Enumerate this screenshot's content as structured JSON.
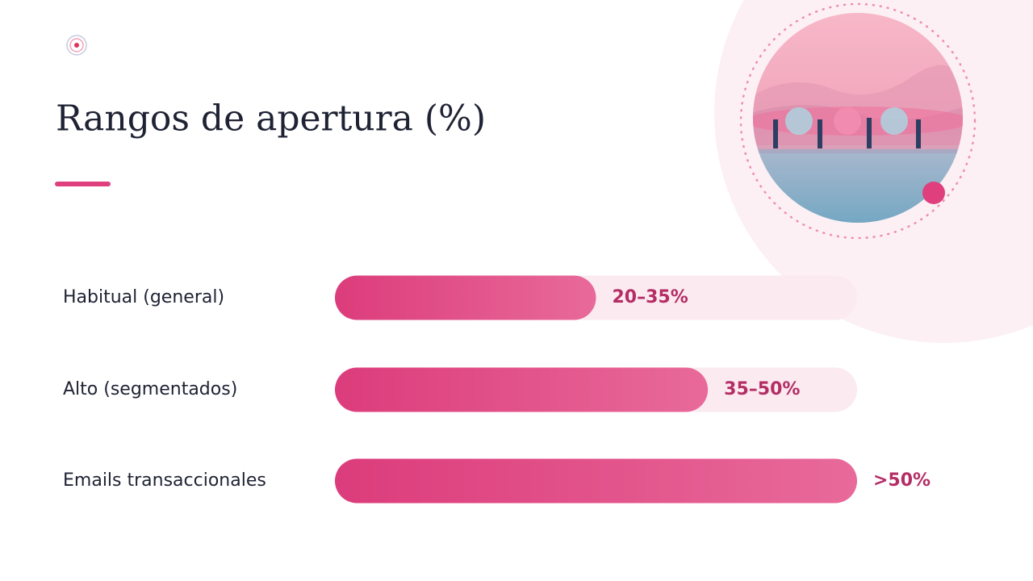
{
  "chart_data": {
    "type": "bar",
    "orientation": "horizontal",
    "title": "Rangos de apertura (%)",
    "categories": [
      "Habitual (general)",
      "Alto (segmentados)",
      "Emails transaccionales"
    ],
    "values": [
      35,
      50,
      70
    ],
    "value_labels": [
      "20–35%",
      "35–50%",
      ">50%"
    ],
    "xlim": [
      0,
      70
    ],
    "color": "#dd3f7d"
  }
}
